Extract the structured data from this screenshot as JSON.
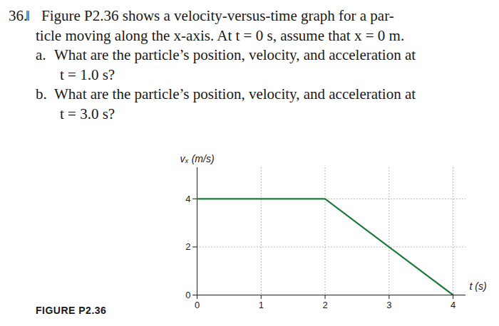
{
  "problem": {
    "number": "36.",
    "difficulty": "‖",
    "lines": [
      "Figure P2.36 shows a velocity-versus-time graph for a par-",
      "ticle moving along the x-axis. At t = 0 s, assume that x = 0 m."
    ],
    "parts": [
      {
        "label": "a.",
        "lines": [
          "What are the particle’s position, velocity, and acceleration at",
          "t = 1.0 s?"
        ]
      },
      {
        "label": "b.",
        "lines": [
          "What are the particle’s position, velocity, and acceleration at",
          "t = 3.0 s?"
        ]
      }
    ]
  },
  "figure_label": "FIGURE P2.36",
  "chart_data": {
    "type": "line",
    "ylabel": "vₓ (m/s)",
    "xlabel": "t (s)",
    "x": [
      0,
      2,
      4
    ],
    "values": [
      4,
      4,
      0
    ],
    "color": "#1e7b3a",
    "xlim": [
      0,
      4.2
    ],
    "ylim": [
      0,
      5.3
    ],
    "xticks": [
      0,
      1,
      2,
      3,
      4
    ],
    "yticks": [
      0,
      2,
      4
    ],
    "grid": true
  }
}
